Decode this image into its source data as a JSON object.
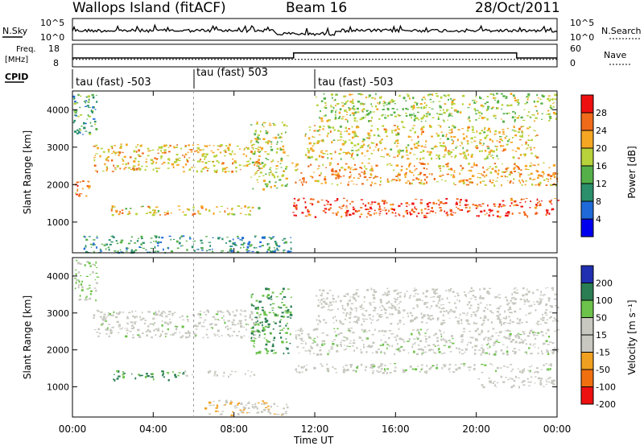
{
  "header": {
    "station": "Wallops Island (fitACF)",
    "beam": "Beam 16",
    "date": "28/Oct/2011"
  },
  "labels": {
    "nsky": "N.Sky",
    "nsearch": "N.Search",
    "freq_line1": "Freq.",
    "freq_line2": "[MHz]",
    "nave": "Nave",
    "cpid": "CPID",
    "ylabel": "Slant Range [km]",
    "xlabel": "Time UT",
    "power_bar_label": "Power [dB]",
    "velocity_bar_label": "Velocity [m s⁻¹]"
  },
  "noise_panel": {
    "left_ticks": [
      "10^5",
      "10^0"
    ],
    "right_ticks": [
      "10^5",
      "10^0"
    ]
  },
  "freq_panel": {
    "left_ticks": [
      "18",
      "8"
    ],
    "right_ticks": [
      "60",
      "0"
    ],
    "freq_mhz": 10.5,
    "nave": [
      {
        "t0": 0,
        "t1": 10.95,
        "value": 20
      },
      {
        "t0": 10.95,
        "t1": 22,
        "value": 38
      },
      {
        "t0": 22,
        "t1": 24,
        "value": 20
      }
    ]
  },
  "cpid_segments": [
    {
      "start": "00:00",
      "label": "tau (fast) -503"
    },
    {
      "start": "06:00",
      "label": "tau (fast) 503"
    },
    {
      "start": "12:00",
      "label": "tau (fast) -503"
    }
  ],
  "chart_data": [
    {
      "type": "heatmap",
      "panel": "power",
      "xlim": [
        0,
        24
      ],
      "ylim": [
        180,
        4500
      ],
      "x_ticks": [
        "00:00",
        "04:00",
        "08:00",
        "12:00",
        "16:00",
        "20:00",
        "00:00"
      ],
      "y_ticks": [
        1000,
        2000,
        3000,
        4000
      ],
      "colorbar": {
        "ticks": [
          4,
          8,
          12,
          16,
          20,
          24,
          28
        ],
        "range": [
          0,
          32
        ],
        "colors": [
          "#0000ee",
          "#1f6ad8",
          "#2a8f6a",
          "#55b04a",
          "#b7d23a",
          "#f5a623",
          "#ef6a1a",
          "#ee1010"
        ]
      },
      "bands": [
        {
          "t0": 0.0,
          "t1": 0.8,
          "r0": 1550,
          "r1": 2150,
          "value": 24
        },
        {
          "t0": 0.0,
          "t1": 1.2,
          "r0": 3350,
          "r1": 4450,
          "value": 12
        },
        {
          "t0": 1.0,
          "t1": 9.2,
          "r0": 2350,
          "r1": 3100,
          "value": 21
        },
        {
          "t0": 1.5,
          "t1": 9.2,
          "r0": 1200,
          "r1": 1450,
          "value": 20
        },
        {
          "t0": 8.8,
          "t1": 10.6,
          "r0": 1900,
          "r1": 3700,
          "value": 18
        },
        {
          "t0": 0.5,
          "t1": 10.8,
          "r0": 200,
          "r1": 650,
          "value": 10
        },
        {
          "t0": 10.8,
          "t1": 24.0,
          "r0": 1150,
          "r1": 1650,
          "value": 28
        },
        {
          "t0": 10.8,
          "t1": 24.0,
          "r0": 2000,
          "r1": 2600,
          "value": 23
        },
        {
          "t0": 11.5,
          "t1": 23.0,
          "r0": 2700,
          "r1": 3600,
          "value": 20
        },
        {
          "t0": 12.0,
          "t1": 24.0,
          "r0": 3700,
          "r1": 4450,
          "value": 17
        }
      ]
    },
    {
      "type": "heatmap",
      "panel": "velocity",
      "xlim": [
        0,
        24
      ],
      "ylim": [
        180,
        4500
      ],
      "x_ticks": [
        "00:00",
        "04:00",
        "08:00",
        "12:00",
        "16:00",
        "20:00",
        "00:00"
      ],
      "y_ticks": [
        1000,
        2000,
        3000,
        4000
      ],
      "colorbar": {
        "ticks": [
          200,
          100,
          50,
          15,
          -15,
          -50,
          -100,
          -200
        ],
        "colors": [
          "#2030b0",
          "#2b7d54",
          "#6cc24a",
          "#c8c8c0",
          "#c8c8c0",
          "#f0a020",
          "#f07010",
          "#ee1010"
        ]
      },
      "bands": [
        {
          "t0": 0.0,
          "t1": 1.2,
          "r0": 3350,
          "r1": 4450,
          "value": 20
        },
        {
          "t0": 1.0,
          "t1": 9.2,
          "r0": 2350,
          "r1": 3100,
          "value": 0
        },
        {
          "t0": 2.0,
          "t1": 5.5,
          "r0": 1200,
          "r1": 1450,
          "value": 60
        },
        {
          "t0": 5.5,
          "t1": 9.2,
          "r0": 1300,
          "r1": 1450,
          "value": -30
        },
        {
          "t0": 8.8,
          "t1": 10.8,
          "r0": 1900,
          "r1": 3700,
          "value": 50
        },
        {
          "t0": 6.5,
          "t1": 10.8,
          "r0": 250,
          "r1": 650,
          "value": -40
        },
        {
          "t0": 11.0,
          "t1": 24.0,
          "r0": 1400,
          "r1": 1650,
          "value": 0
        },
        {
          "t0": 11.0,
          "t1": 24.0,
          "r0": 1900,
          "r1": 2600,
          "value": 0
        },
        {
          "t0": 12.0,
          "t1": 24.0,
          "r0": 2700,
          "r1": 3700,
          "value": -20
        },
        {
          "t0": 20.0,
          "t1": 24.0,
          "r0": 1000,
          "r1": 1300,
          "value": -30
        }
      ]
    }
  ]
}
